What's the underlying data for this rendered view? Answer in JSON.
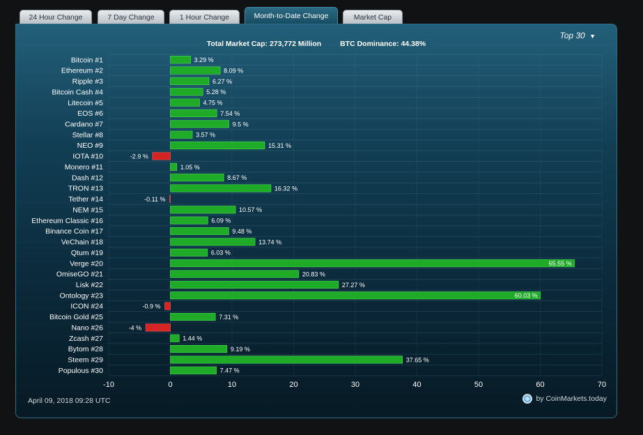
{
  "tabs": [
    {
      "label": "24 Hour Change",
      "active": false
    },
    {
      "label": "7 Day Change",
      "active": false
    },
    {
      "label": "1 Hour Change",
      "active": false
    },
    {
      "label": "Month-to-Date Change",
      "active": true
    },
    {
      "label": "Market Cap",
      "active": false
    }
  ],
  "stats": {
    "total_market_cap": "Total Market Cap: 273,772 Million",
    "btc_dominance": "BTC Dominance: 44.38%"
  },
  "top_select": {
    "label": "Top 30",
    "arrow": "▼"
  },
  "footer": {
    "date": "April 09, 2018 09:28 UTC",
    "credit": "by CoinMarkets.today"
  },
  "colors": {
    "positive": "#1faa28",
    "positive_edge": "#4ee05a",
    "negative": "#d42424",
    "negative_edge": "#ff5555"
  },
  "chart_data": {
    "type": "bar",
    "orientation": "horizontal",
    "categories": [
      "Bitcoin #1",
      "Ethereum #2",
      "Ripple #3",
      "Bitcoin Cash #4",
      "Litecoin #5",
      "EOS #6",
      "Cardano #7",
      "Stellar #8",
      "NEO #9",
      "IOTA #10",
      "Monero #11",
      "Dash #12",
      "TRON #13",
      "Tether #14",
      "NEM #15",
      "Ethereum Classic #16",
      "Binance Coin #17",
      "VeChain #18",
      "Qtum #19",
      "Verge #20",
      "OmiseGO #21",
      "Lisk #22",
      "Ontology #23",
      "ICON #24",
      "Bitcoin Gold #25",
      "Nano #26",
      "Zcash #27",
      "Bytom #28",
      "Steem #29",
      "Populous #30"
    ],
    "values": [
      3.29,
      8.09,
      6.27,
      5.28,
      4.75,
      7.54,
      9.5,
      3.57,
      15.31,
      -2.9,
      1.05,
      8.67,
      16.32,
      -0.11,
      10.57,
      6.09,
      9.48,
      13.74,
      6.03,
      65.55,
      20.83,
      27.27,
      60.03,
      -0.9,
      7.31,
      -4,
      1.44,
      9.19,
      37.65,
      7.47
    ],
    "value_labels": [
      "3.29 %",
      "8.09 %",
      "6.27 %",
      "5.28 %",
      "4.75 %",
      "7.54 %",
      "9.5 %",
      "3.57 %",
      "15.31 %",
      "-2.9 %",
      "1.05 %",
      "8.67 %",
      "16.32 %",
      "-0.11 %",
      "10.57 %",
      "6.09 %",
      "9.48 %",
      "13.74 %",
      "6.03 %",
      "65.55 %",
      "20.83 %",
      "27.27 %",
      "60.03 %",
      "-0.9 %",
      "7.31 %",
      "-4 %",
      "1.44 %",
      "9.19 %",
      "37.65 %",
      "7.47 %"
    ],
    "xlim": [
      -10,
      70
    ],
    "xticks": [
      "-10",
      "0",
      "10",
      "20",
      "30",
      "40",
      "50",
      "60",
      "70"
    ],
    "grid": true
  }
}
